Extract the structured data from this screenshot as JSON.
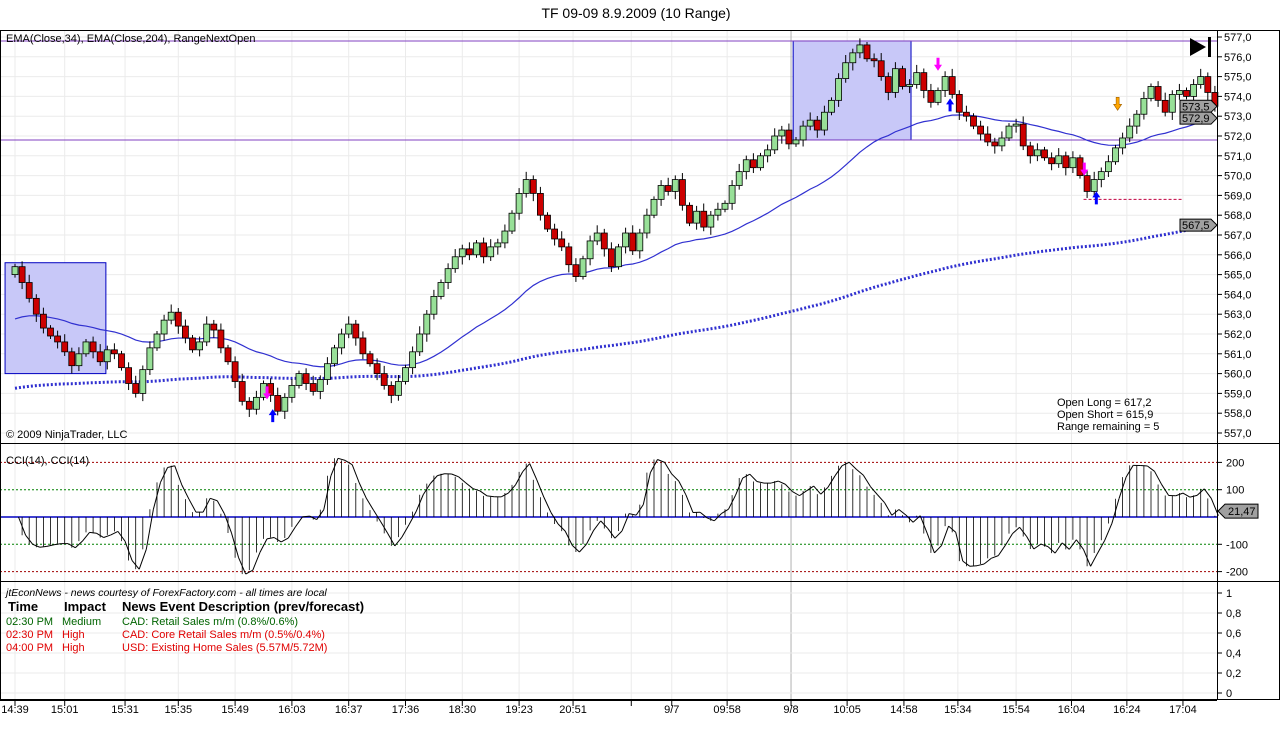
{
  "title": "TF 09-09  8.9.2009 (10 Range)",
  "price_pane": {
    "indicators_label": "EMA(Close,34), EMA(Close,204), RangeNextOpen",
    "copyright": "© 2009 NinjaTrader, LLC",
    "open_long": "Open Long = 617,2",
    "open_short": "Open Short = 615,9",
    "range_remaining": "Range remaining = 5",
    "last_price_tag": "573,5",
    "ema34_tag": "572,9",
    "ema204_tag": "567,5"
  },
  "cci_pane": {
    "label": "CCI(14), CCI(14)",
    "value_tag": "21,47",
    "levels": [
      "200",
      "100",
      "-100",
      "-200"
    ]
  },
  "news_pane": {
    "header": "jtEconNews - news courtesy of ForexFactory.com - all times are local",
    "columns": [
      "Time",
      "Impact",
      "News Event Description (prev/forecast)"
    ],
    "rows": [
      {
        "time": "02:30 PM",
        "impact": "Medium",
        "desc": "CAD: Retail Sales m/m (0.8%/0.6%)",
        "color": "#006400"
      },
      {
        "time": "02:30 PM",
        "impact": "High",
        "desc": "CAD: Core Retail Sales m/m (0.5%/0.4%)",
        "color": "#e00000"
      },
      {
        "time": "04:00 PM",
        "impact": "High",
        "desc": "USD: Existing Home Sales (5.57M/5.72M)",
        "color": "#e00000"
      }
    ],
    "axis": [
      "1",
      "0,8",
      "0,6",
      "0,4",
      "0,2",
      "0"
    ]
  },
  "chart_data": {
    "type": "candlestick",
    "title": "TF 09-09  8.9.2009 (10 Range)",
    "ylim": [
      557,
      577
    ],
    "price_ticks": [
      "557,0",
      "558,0",
      "559,0",
      "560,0",
      "561,0",
      "562,0",
      "563,0",
      "564,0",
      "565,0",
      "566,0",
      "567,0",
      "568,0",
      "569,0",
      "570,0",
      "571,0",
      "572,0",
      "573,0",
      "574,0",
      "575,0",
      "576,0",
      "577,0"
    ],
    "time_labels": [
      {
        "bar": 0,
        "label": "14:39"
      },
      {
        "bar": 7,
        "label": "15:01"
      },
      {
        "bar": 15.5,
        "label": "15:31"
      },
      {
        "bar": 23,
        "label": "15:35"
      },
      {
        "bar": 31,
        "label": "15:49"
      },
      {
        "bar": 39,
        "label": "16:03"
      },
      {
        "bar": 47,
        "label": "16:37"
      },
      {
        "bar": 55,
        "label": "17:36"
      },
      {
        "bar": 63,
        "label": "18:30"
      },
      {
        "bar": 71,
        "label": "19:23"
      },
      {
        "bar": 78.6,
        "label": "20:51"
      },
      {
        "bar": 86.8,
        "label": ""
      },
      {
        "bar": 92.5,
        "label": "9/7"
      },
      {
        "bar": 100.3,
        "label": "09:58"
      },
      {
        "bar": 109.3,
        "label": "9/8"
      },
      {
        "bar": 117.2,
        "label": "10:05"
      },
      {
        "bar": 125.2,
        "label": "14:58"
      },
      {
        "bar": 132.8,
        "label": "15:34"
      },
      {
        "bar": 141,
        "label": "15:54"
      },
      {
        "bar": 148.8,
        "label": "16:04"
      },
      {
        "bar": 156.6,
        "label": "16:24"
      },
      {
        "bar": 164.5,
        "label": "17:04"
      }
    ],
    "first_open": 565.0,
    "closes": [
      565.4,
      564.6,
      563.8,
      563.0,
      562.3,
      561.9,
      561.6,
      561.1,
      560.4,
      561.0,
      561.6,
      561.1,
      560.6,
      561.2,
      561.0,
      560.3,
      559.5,
      559.0,
      560.2,
      561.3,
      562.0,
      562.7,
      563.1,
      562.4,
      561.8,
      561.2,
      561.6,
      562.5,
      562.2,
      561.3,
      560.6,
      559.6,
      558.6,
      558.2,
      558.8,
      559.5,
      558.9,
      558.1,
      558.8,
      559.4,
      560.0,
      559.5,
      559.1,
      559.7,
      560.5,
      561.3,
      562.0,
      562.5,
      561.8,
      561.0,
      560.5,
      560.0,
      559.4,
      558.9,
      559.6,
      560.3,
      561.1,
      562.0,
      563.0,
      563.9,
      564.6,
      565.3,
      565.9,
      566.3,
      566.0,
      566.6,
      565.9,
      566.4,
      566.6,
      567.2,
      568.1,
      569.1,
      569.8,
      569.1,
      568.0,
      567.3,
      566.8,
      566.4,
      565.5,
      564.9,
      565.8,
      566.7,
      567.1,
      566.3,
      565.4,
      566.4,
      567.1,
      566.2,
      567.1,
      568.0,
      568.8,
      569.5,
      569.2,
      569.8,
      568.5,
      567.6,
      568.2,
      567.4,
      568.0,
      568.3,
      568.6,
      569.5,
      570.2,
      570.8,
      570.4,
      571.0,
      571.3,
      572.0,
      572.3,
      571.6,
      571.8,
      572.5,
      572.8,
      572.3,
      573.2,
      573.8,
      574.9,
      575.7,
      576.2,
      576.6,
      575.9,
      575.8,
      575.0,
      574.2,
      575.4,
      574.5,
      574.6,
      575.2,
      574.3,
      573.7,
      574.3,
      575.0,
      574.1,
      573.2,
      573.0,
      572.5,
      572.1,
      571.7,
      571.5,
      571.9,
      572.5,
      572.6,
      571.5,
      571.0,
      571.3,
      570.9,
      570.6,
      571.0,
      570.4,
      570.9,
      570.0,
      569.2,
      569.8,
      570.2,
      570.7,
      571.4,
      571.9,
      572.5,
      573.1,
      573.9,
      574.5,
      573.8,
      573.2,
      574.1,
      574.3,
      574.0,
      574.6,
      575.0,
      574.2,
      573.5
    ],
    "ema34_seed": 562.6,
    "ema204_seed": 559.2,
    "range_boxes": [
      {
        "bar_from": -1.4,
        "bar_to": 12.8,
        "low": 560.0,
        "high": 565.6
      },
      {
        "bar_from": 109.6,
        "bar_to": 126.2,
        "low": 571.8,
        "high": 576.8
      }
    ],
    "horizontal_lines": [
      576.8,
      571.8
    ],
    "dashed_level": {
      "bar_from": 150.5,
      "bar_to": 164.5,
      "price": 568.8
    },
    "signals": [
      {
        "bar": 35.5,
        "price": 559.0,
        "type": "down",
        "color": "#ff00ff"
      },
      {
        "bar": 36.3,
        "price": 557.9,
        "type": "up",
        "color": "#0000ff"
      },
      {
        "bar": 130,
        "price": 575.6,
        "type": "down",
        "color": "#ff00ff"
      },
      {
        "bar": 131.7,
        "price": 573.6,
        "type": "up",
        "color": "#0000ff"
      },
      {
        "bar": 150.6,
        "price": 570.3,
        "type": "down",
        "color": "#ff00ff"
      },
      {
        "bar": 152.3,
        "price": 568.9,
        "type": "up",
        "color": "#0000ff"
      },
      {
        "bar": 155.3,
        "price": 573.6,
        "type": "down",
        "color": "#ffa500"
      }
    ],
    "colors": {
      "up": "#98e098",
      "down": "#cc0000",
      "ema": "#3030d0",
      "box": "#c8c8f8",
      "hline": "#8040c0"
    }
  }
}
